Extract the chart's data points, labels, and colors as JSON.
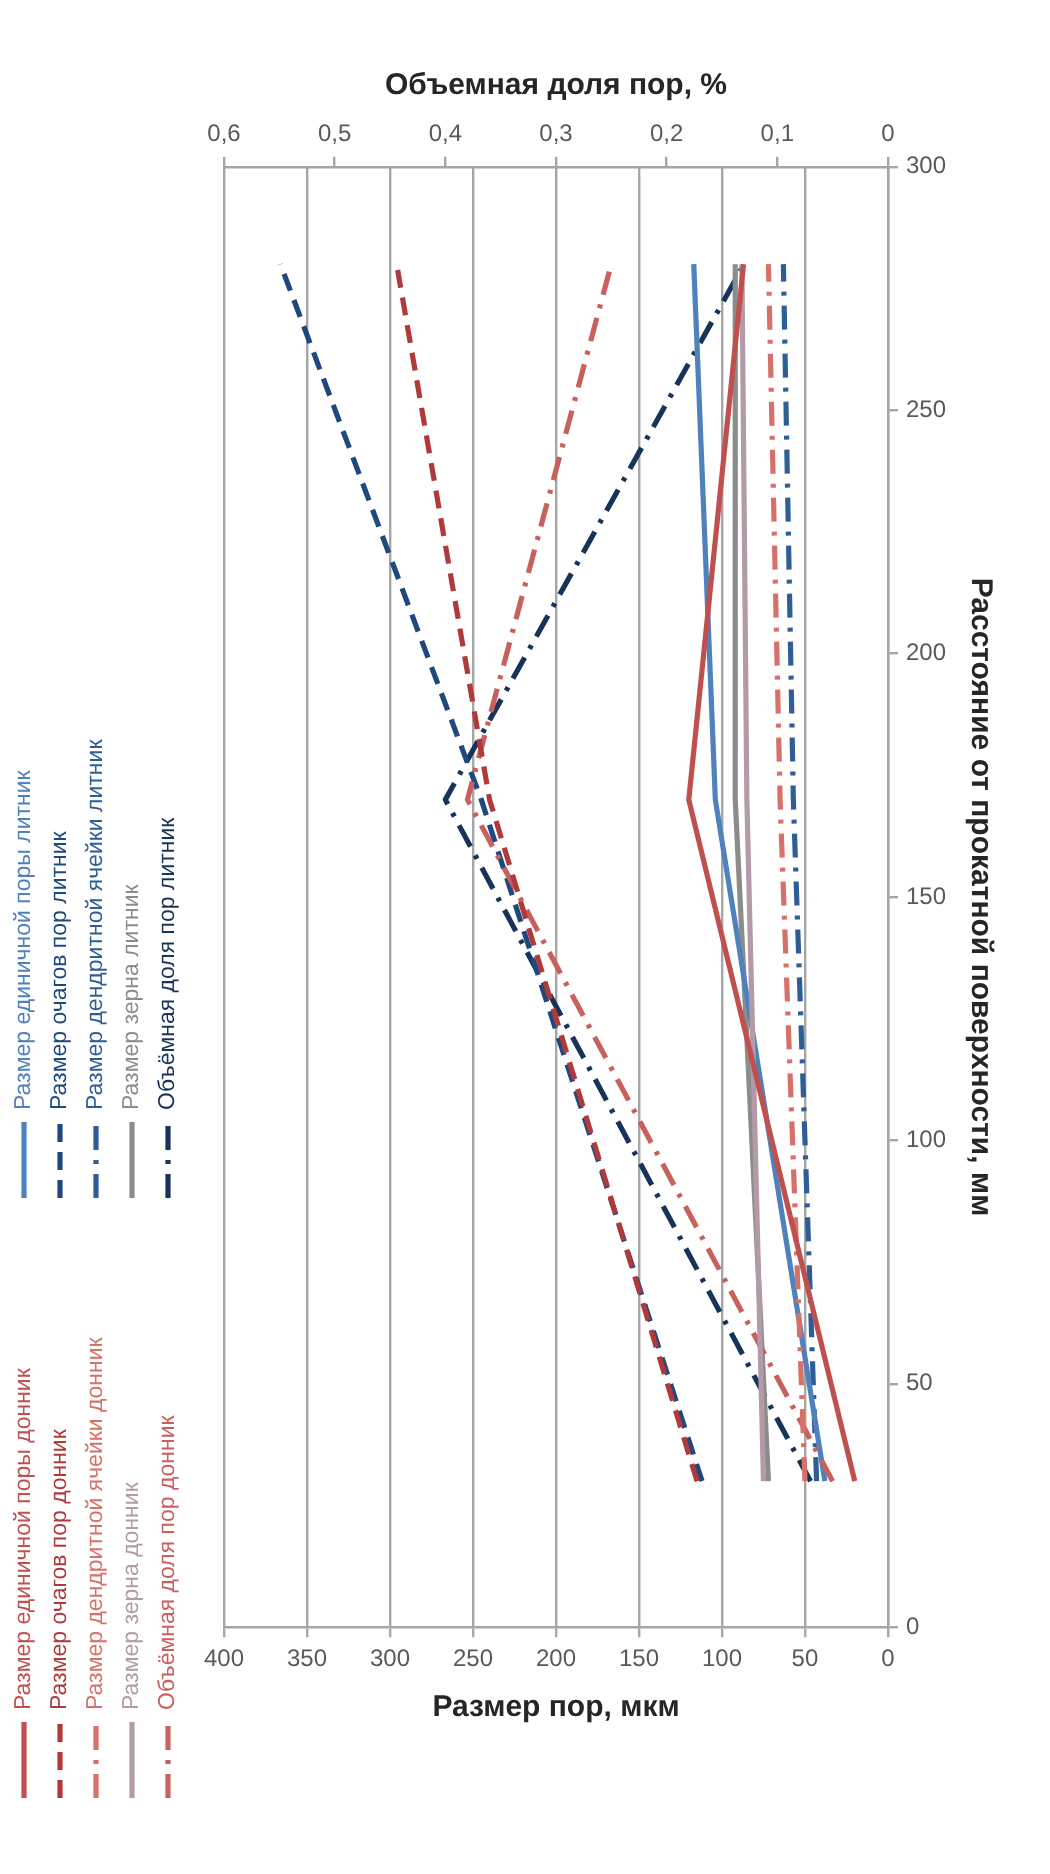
{
  "chart_data": {
    "type": "line",
    "xlabel": "Размер пор, мкм",
    "x2label": "Объемная доля пор, %",
    "ylabel": "Расстояние от прокатной поверхности, мм",
    "xlim": [
      400,
      0
    ],
    "xticks": [
      400,
      350,
      300,
      250,
      200,
      150,
      100,
      50,
      0
    ],
    "x2lim": [
      0.6,
      0
    ],
    "x2ticks": [
      {
        "value": 0.6,
        "label": "0,6"
      },
      {
        "value": 0.5,
        "label": "0,5"
      },
      {
        "value": 0.4,
        "label": "0,4"
      },
      {
        "value": 0.3,
        "label": "0,3"
      },
      {
        "value": 0.2,
        "label": "0,2"
      },
      {
        "value": 0.1,
        "label": "0,1"
      },
      0
    ],
    "ylim": [
      0,
      300
    ],
    "yticks": [
      0,
      50,
      100,
      150,
      200,
      250,
      300
    ],
    "grid": "x",
    "legend": "left",
    "marker": "none",
    "series": [
      {
        "name": "Размер единичной поры донник",
        "color": "#c0504d",
        "line_style": "solid",
        "x": [
          20,
          120,
          87
        ],
        "values": [
          30,
          170,
          280
        ]
      },
      {
        "name": "Размер очагов пор донник",
        "color": "#b03a3a",
        "line_style": "dashed",
        "x": [
          115,
          240,
          296
        ],
        "values": [
          30,
          170,
          280
        ]
      },
      {
        "name": "Размер дендритной ячейки донник",
        "color": "#d8706a",
        "line_style": "dashdot",
        "x": [
          50,
          65,
          72
        ],
        "values": [
          30,
          170,
          280
        ]
      },
      {
        "name": "Размер зерна донник",
        "color": "#b39aa8",
        "line_style": "solid",
        "x": [
          75,
          85,
          88
        ],
        "values": [
          30,
          170,
          280
        ]
      },
      {
        "name": "Объёмная доля пор донник",
        "color": "#c8605c",
        "line_style": "dashdot",
        "axis": "x2",
        "x": [
          0.05,
          0.38,
          0.25
        ],
        "values": [
          30,
          170,
          280
        ]
      },
      {
        "name": "Размер единичной поры литник",
        "color": "#4f81bd",
        "line_style": "solid",
        "x": [
          38,
          104,
          117
        ],
        "values": [
          30,
          170,
          280
        ]
      },
      {
        "name": "Размер очагов пор литник",
        "color": "#1f497d",
        "line_style": "dashed",
        "x": [
          112,
          245,
          366
        ],
        "values": [
          30,
          170,
          280
        ]
      },
      {
        "name": "Размер дендритной ячейки литник",
        "color": "#2d5f96",
        "line_style": "dashdot",
        "x": [
          43,
          57,
          63
        ],
        "values": [
          30,
          170,
          280
        ]
      },
      {
        "name": "Размер зерна литник",
        "color": "#8c8c8c",
        "line_style": "solid",
        "x": [
          72,
          92,
          92
        ],
        "values": [
          30,
          170,
          280
        ]
      },
      {
        "name": "Объёмная доля пор литник",
        "color": "#16345a",
        "line_style": "dashdot",
        "axis": "x2",
        "x": [
          0.07,
          0.4,
          0.13
        ],
        "values": [
          30,
          170,
          280
        ]
      }
    ]
  }
}
